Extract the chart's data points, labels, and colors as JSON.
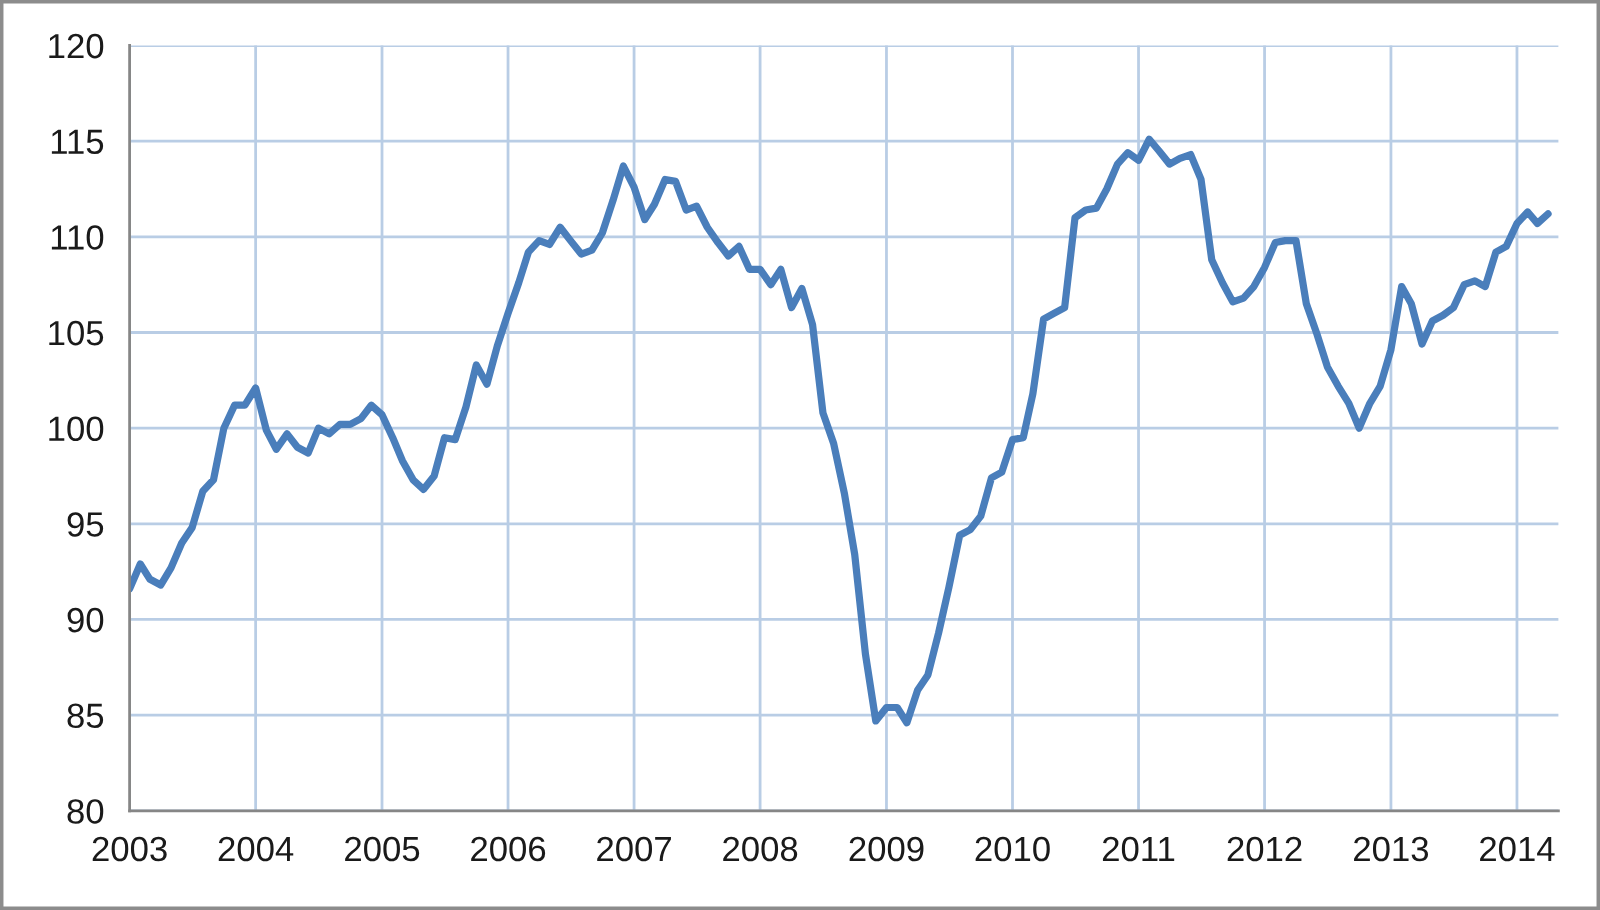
{
  "chart_data": {
    "type": "line",
    "x": [
      "2003-01",
      "2003-02",
      "2003-03",
      "2003-04",
      "2003-05",
      "2003-06",
      "2003-07",
      "2003-08",
      "2003-09",
      "2003-10",
      "2003-11",
      "2003-12",
      "2004-01",
      "2004-02",
      "2004-03",
      "2004-04",
      "2004-05",
      "2004-06",
      "2004-07",
      "2004-08",
      "2004-09",
      "2004-10",
      "2004-11",
      "2004-12",
      "2005-01",
      "2005-02",
      "2005-03",
      "2005-04",
      "2005-05",
      "2005-06",
      "2005-07",
      "2005-08",
      "2005-09",
      "2005-10",
      "2005-11",
      "2005-12",
      "2006-01",
      "2006-02",
      "2006-03",
      "2006-04",
      "2006-05",
      "2006-06",
      "2006-07",
      "2006-08",
      "2006-09",
      "2006-10",
      "2006-11",
      "2006-12",
      "2007-01",
      "2007-02",
      "2007-03",
      "2007-04",
      "2007-05",
      "2007-06",
      "2007-07",
      "2007-08",
      "2007-09",
      "2007-10",
      "2007-11",
      "2007-12",
      "2008-01",
      "2008-02",
      "2008-03",
      "2008-04",
      "2008-05",
      "2008-06",
      "2008-07",
      "2008-08",
      "2008-09",
      "2008-10",
      "2008-11",
      "2008-12",
      "2009-01",
      "2009-02",
      "2009-03",
      "2009-04",
      "2009-05",
      "2009-06",
      "2009-07",
      "2009-08",
      "2009-09",
      "2009-10",
      "2009-11",
      "2009-12",
      "2010-01",
      "2010-02",
      "2010-03",
      "2010-04",
      "2010-05",
      "2010-06",
      "2010-07",
      "2010-08",
      "2010-09",
      "2010-10",
      "2010-11",
      "2010-12",
      "2011-01",
      "2011-02",
      "2011-03",
      "2011-04",
      "2011-05",
      "2011-06",
      "2011-07",
      "2011-08",
      "2011-09",
      "2011-10",
      "2011-11",
      "2011-12",
      "2012-01",
      "2012-02",
      "2012-03",
      "2012-04",
      "2012-05",
      "2012-06",
      "2012-07",
      "2012-08",
      "2012-09",
      "2012-10",
      "2012-11",
      "2012-12",
      "2013-01",
      "2013-02",
      "2013-03",
      "2013-04",
      "2013-05",
      "2013-06",
      "2013-07",
      "2013-08",
      "2013-09",
      "2013-10",
      "2013-11",
      "2013-12",
      "2014-01",
      "2014-02",
      "2014-03",
      "2014-04"
    ],
    "series": [
      {
        "color": "#4a7ebb",
        "values": [
          91.6,
          92.9,
          92.1,
          91.8,
          92.7,
          94.0,
          94.8,
          96.7,
          97.3,
          100.0,
          101.2,
          101.2,
          102.1,
          99.9,
          98.9,
          99.7,
          99.0,
          98.7,
          100.0,
          99.7,
          100.2,
          100.2,
          100.5,
          101.2,
          100.7,
          99.5,
          98.3,
          97.3,
          96.8,
          97.5,
          99.5,
          99.4,
          101.1,
          103.3,
          102.3,
          104.3,
          106.0,
          107.6,
          109.2,
          109.8,
          109.6,
          110.5,
          109.8,
          109.1,
          109.3,
          110.2,
          111.9,
          113.7,
          112.6,
          110.9,
          111.7,
          113.0,
          112.9,
          111.4,
          111.6,
          110.5,
          109.7,
          109.0,
          109.5,
          108.3,
          108.3,
          107.5,
          108.3,
          106.3,
          107.3,
          105.4,
          100.8,
          99.2,
          96.6,
          93.4,
          88.2,
          84.7,
          85.4,
          85.4,
          84.6,
          86.3,
          87.1,
          89.3,
          91.7,
          94.4,
          94.7,
          95.4,
          97.4,
          97.7,
          99.4,
          99.5,
          101.8,
          105.7,
          106.0,
          106.3,
          111.0,
          111.4,
          111.5,
          112.5,
          113.8,
          114.4,
          114.0,
          115.1,
          114.5,
          113.8,
          114.1,
          114.3,
          113.0,
          108.8,
          107.6,
          106.6,
          106.8,
          107.4,
          108.4,
          109.7,
          109.8,
          109.8,
          106.5,
          104.9,
          103.2,
          102.2,
          101.3,
          100.0,
          101.3,
          102.2,
          104.1,
          107.4,
          106.5,
          104.4,
          105.6,
          105.9,
          106.3,
          107.5,
          107.7,
          107.4,
          109.2,
          109.5,
          110.7,
          111.3,
          110.7,
          111.2
        ]
      }
    ],
    "xlim": [
      "2003-01-01",
      "2014-05-01"
    ],
    "xticks": [
      "2003",
      "2004",
      "2005",
      "2006",
      "2007",
      "2008",
      "2009",
      "2010",
      "2011",
      "2012",
      "2013",
      "2014"
    ],
    "ylim": [
      80,
      120
    ],
    "yticks": [
      80,
      85,
      90,
      95,
      100,
      105,
      110,
      115,
      120
    ],
    "grid": true
  }
}
